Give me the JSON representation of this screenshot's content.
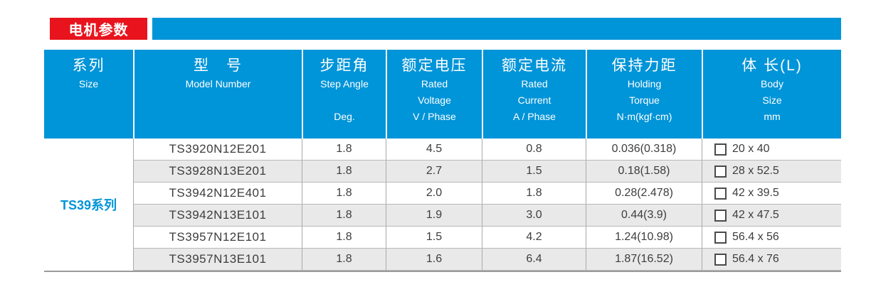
{
  "header": {
    "title": "电机参数"
  },
  "colors": {
    "accent_blue": "#0094d8",
    "accent_red": "#e8131d",
    "row_stripe": "#e9e9e9"
  },
  "table": {
    "series_label": "TS39系列",
    "columns": [
      {
        "zh": "系列",
        "en_lines": [
          "Size"
        ]
      },
      {
        "zh": "型　号",
        "en_lines": [
          "Model Number"
        ]
      },
      {
        "zh": "步距角",
        "en_lines": [
          "Step Angle"
        ],
        "unit": "Deg."
      },
      {
        "zh": "额定电压",
        "en_lines": [
          "Rated",
          "Voltage",
          "V / Phase"
        ]
      },
      {
        "zh": "额定电流",
        "en_lines": [
          "Rated",
          "Current",
          "A / Phase"
        ]
      },
      {
        "zh": "保持力距",
        "en_lines": [
          "Holding",
          "Torque",
          "N·m(kgf·cm)"
        ]
      },
      {
        "zh": "体 长(L)",
        "en_lines": [
          "Body",
          "Size",
          "mm"
        ]
      }
    ],
    "rows": [
      {
        "model": "TS3920N12E201",
        "step_angle": "1.8",
        "voltage": "4.5",
        "current": "0.8",
        "torque": "0.036(0.318)",
        "body": "20 x 40"
      },
      {
        "model": "TS3928N13E201",
        "step_angle": "1.8",
        "voltage": "2.7",
        "current": "1.5",
        "torque": "0.18(1.58)",
        "body": "28 x 52.5"
      },
      {
        "model": "TS3942N12E401",
        "step_angle": "1.8",
        "voltage": "2.0",
        "current": "1.8",
        "torque": "0.28(2.478)",
        "body": "42 x 39.5"
      },
      {
        "model": "TS3942N13E101",
        "step_angle": "1.8",
        "voltage": "1.9",
        "current": "3.0",
        "torque": "0.44(3.9)",
        "body": "42 x 47.5"
      },
      {
        "model": "TS3957N12E101",
        "step_angle": "1.8",
        "voltage": "1.5",
        "current": "4.2",
        "torque": "1.24(10.98)",
        "body": "56.4 x 56"
      },
      {
        "model": "TS3957N13E101",
        "step_angle": "1.8",
        "voltage": "1.6",
        "current": "6.4",
        "torque": "1.87(16.52)",
        "body": "56.4 x 76"
      }
    ]
  }
}
